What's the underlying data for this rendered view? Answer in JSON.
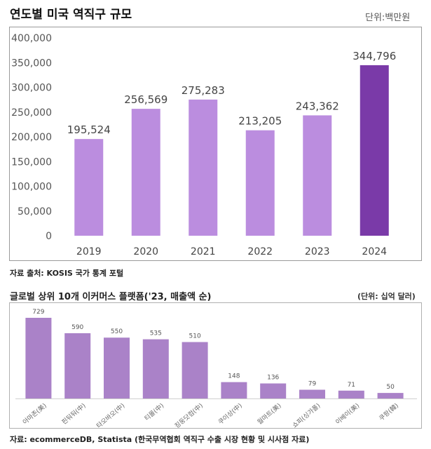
{
  "chart1": {
    "title": "연도별 미국 역직구 규모",
    "unit": "단위:백만원",
    "source": "자료 출처: KOSIS 국가 통계 포털"
  },
  "chart2": {
    "title": "글로벌 상위 10개 이커머스 플랫폼('23, 매출액 순)",
    "unit": "(단위: 십억 달러)",
    "source": "자료: ecommerceDB, Statista (한국무역협회 역직구 수출 시장 현황 및 시사점 자료)"
  },
  "colors": {
    "bar_light": "#bb8ddf",
    "bar_dark": "#7a3aa8",
    "bar_platform": "#aa82c8"
  },
  "chart_data": [
    {
      "type": "bar",
      "title": "연도별 미국 역직구 규모",
      "categories": [
        "2019",
        "2020",
        "2021",
        "2022",
        "2023",
        "2024"
      ],
      "values": [
        195524,
        256569,
        275283,
        213205,
        243362,
        344796
      ],
      "value_labels": [
        "195,524",
        "256,569",
        "275,283",
        "213,205",
        "243,362",
        "344,796"
      ],
      "yticks": [
        "0",
        "50,000",
        "100,000",
        "150,000",
        "200,000",
        "250,000",
        "300,000",
        "350,000",
        "400,000"
      ],
      "ylim": [
        0,
        400000
      ],
      "highlight_category": "2024",
      "grid": false
    },
    {
      "type": "bar",
      "title": "글로벌 상위 10개 이커머스 플랫폼('23, 매출액 순)",
      "categories": [
        "아마존(美)",
        "핀둬둬(中)",
        "타오바오(中)",
        "티몰(中)",
        "징둥닷컴(中)",
        "쿠이상(中)",
        "월마트(美)",
        "쇼피(싱가폴)",
        "이베이(美)",
        "쿠팡(韓)"
      ],
      "values": [
        729,
        590,
        550,
        535,
        510,
        148,
        136,
        79,
        71,
        50
      ],
      "ylim": [
        0,
        729
      ],
      "grid": false
    }
  ]
}
